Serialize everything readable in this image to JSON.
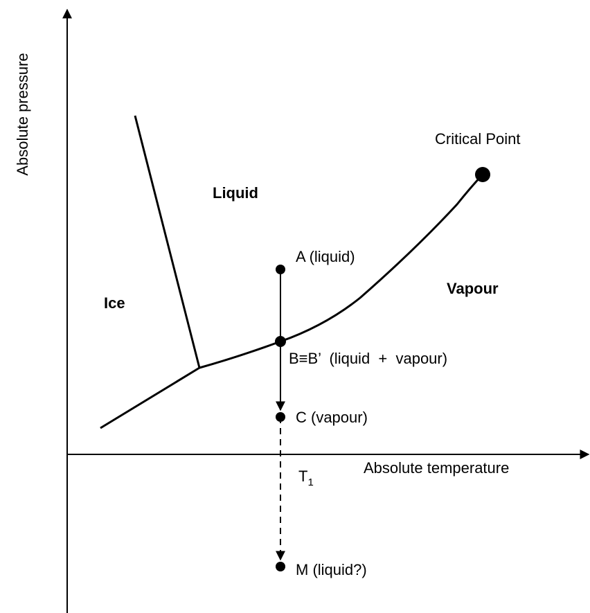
{
  "axes": {
    "y_label": "Absolute pressure",
    "x_label": "Absolute temperature"
  },
  "regions": {
    "ice": "Ice",
    "liquid": "Liquid",
    "vapour": "Vapour"
  },
  "points": {
    "critical": "Critical Point",
    "a": "A (liquid)",
    "b": "B≡B’  (liquid  +  vapour)",
    "c": "C (vapour)",
    "m": "M (liquid?)"
  },
  "temperature_mark": {
    "symbol": "T",
    "subscript": "1"
  }
}
